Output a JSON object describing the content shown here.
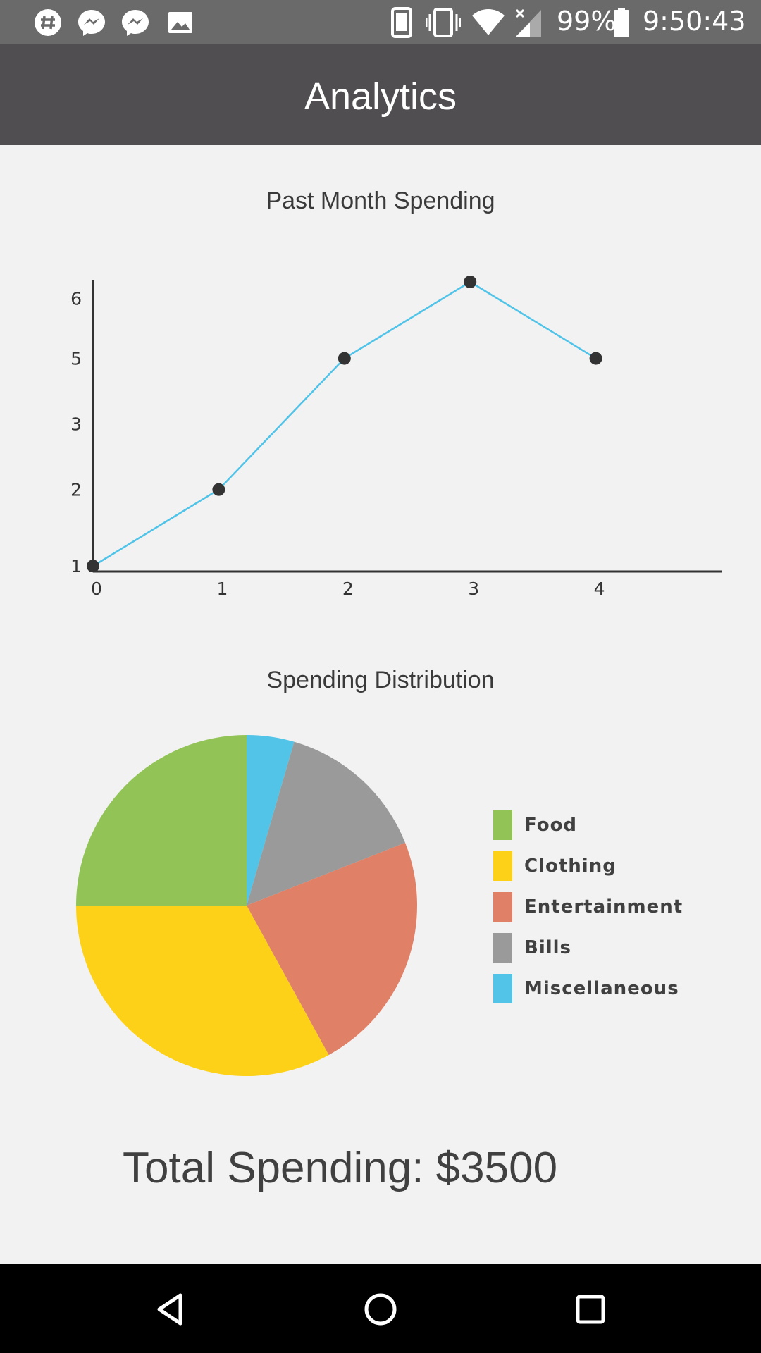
{
  "status_bar": {
    "left_icons": [
      "slack-icon",
      "messenger-icon",
      "messenger-icon",
      "image-icon"
    ],
    "right_icons": [
      "phone-icon",
      "vibrate-icon",
      "wifi-icon",
      "signal-icon",
      "battery-icon"
    ],
    "battery": "99%",
    "time": "9:50:43"
  },
  "header": {
    "title": "Analytics"
  },
  "line_chart_title": "Past Month Spending",
  "pie_chart_title": "Spending Distribution",
  "chart_data": [
    {
      "type": "line",
      "title": "Past Month Spending",
      "xlabel": "",
      "ylabel": "",
      "x_ticks": [
        "0",
        "1",
        "2",
        "3",
        "4"
      ],
      "y_ticks": [
        "1",
        "2",
        "3",
        "5",
        "6"
      ],
      "x": [
        0,
        1,
        2,
        3,
        4
      ],
      "series": [
        {
          "values": [
            1,
            2.4,
            4.8,
            6.2,
            4.8
          ]
        }
      ],
      "xlim": [
        0,
        5
      ],
      "ylim": [
        0.9,
        6.2
      ],
      "line_color": "#4fc3e8",
      "point_color": "#333333",
      "grid": false
    },
    {
      "type": "pie",
      "title": "Spending Distribution",
      "categories": [
        "Food",
        "Clothing",
        "Entertainment",
        "Bills",
        "Miscellaneous"
      ],
      "values": [
        25,
        33,
        23,
        14.5,
        4.5
      ],
      "colors": [
        "#92c357",
        "#fcd118",
        "#e08066",
        "#9a9a9a",
        "#52c4e7"
      ],
      "legend": "right"
    }
  ],
  "total_label": "Total Spending: $3500",
  "nav": {
    "icons": [
      "back-icon",
      "home-icon",
      "recents-icon"
    ]
  }
}
